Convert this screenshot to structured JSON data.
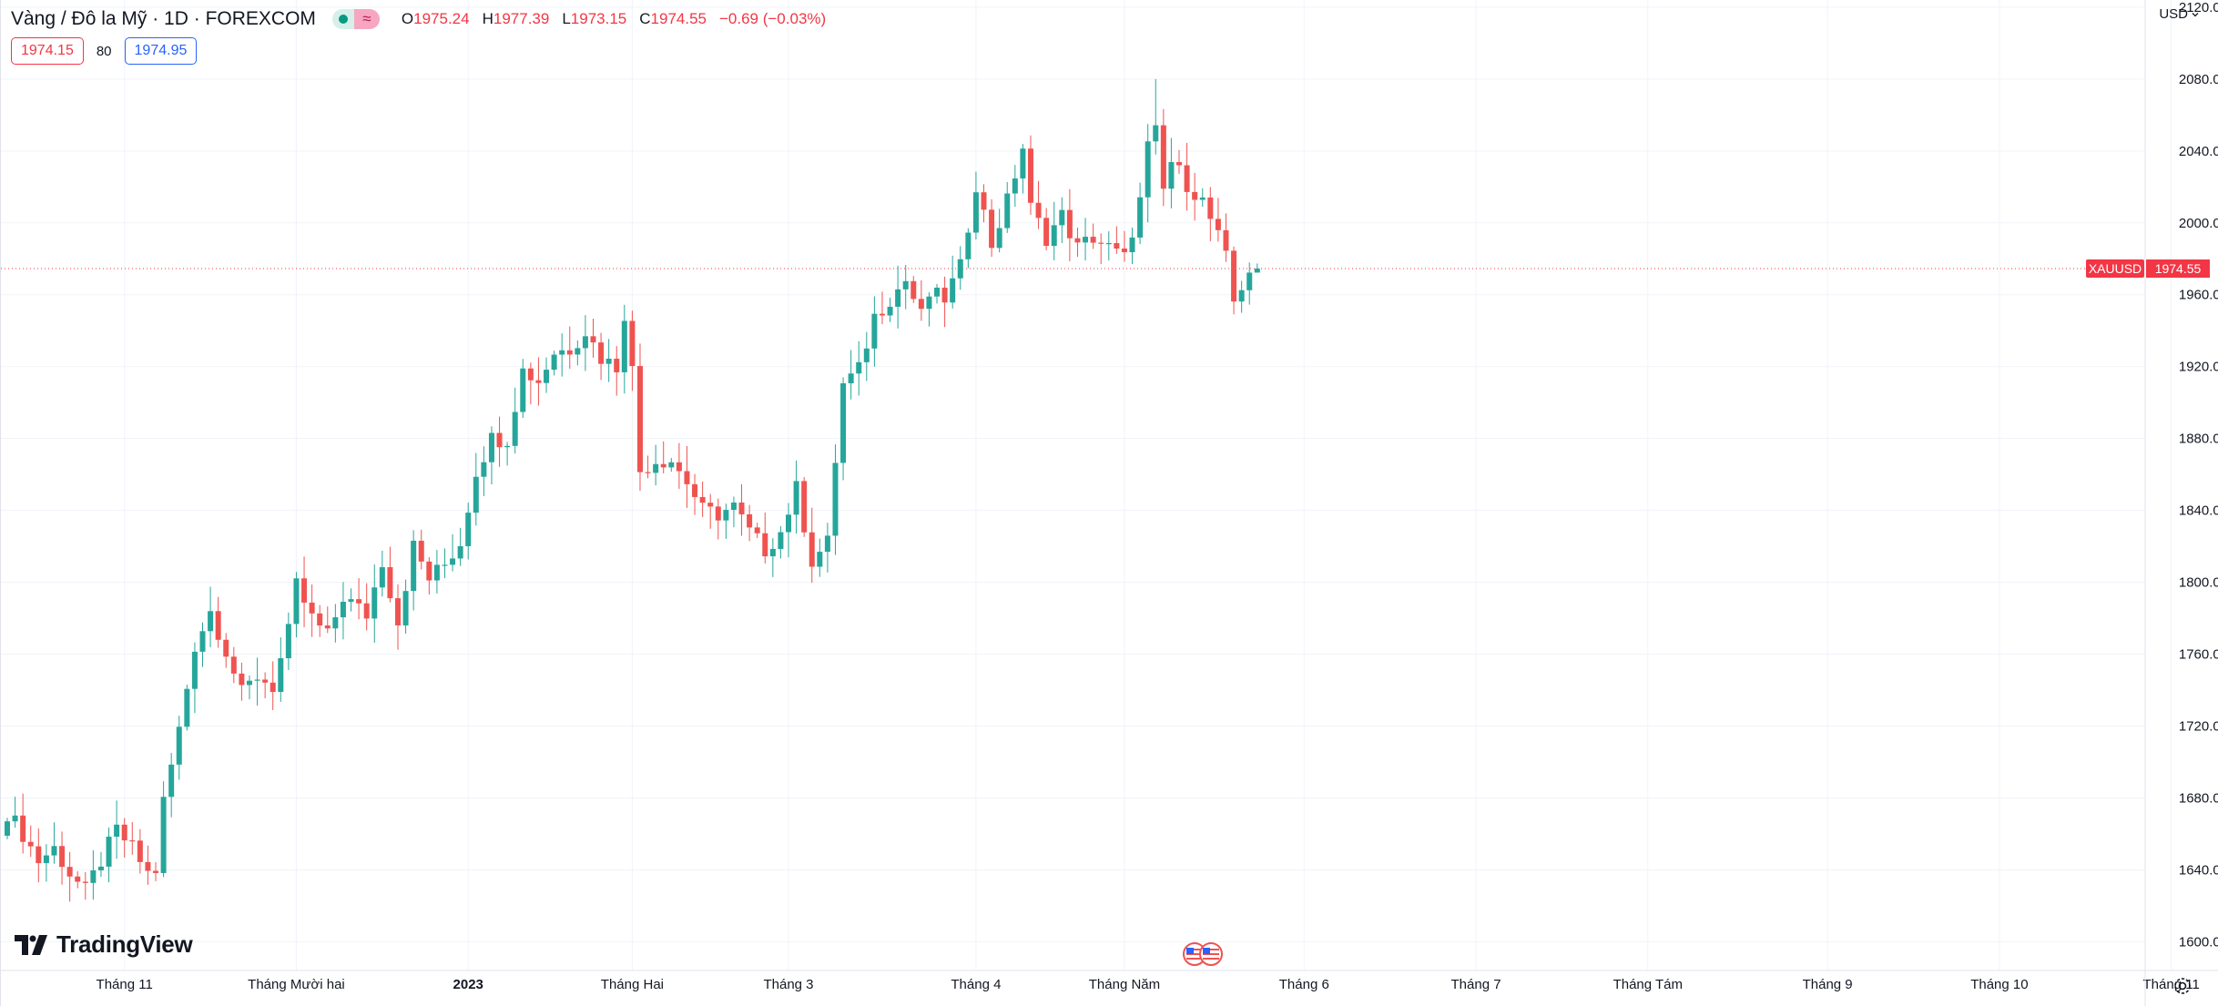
{
  "header": {
    "symbol_title": "Vàng / Đô la Mỹ · 1D · FOREXCOM",
    "status_delay_icon": "≈",
    "ohlc": [
      {
        "key": "O",
        "value": "1975.24"
      },
      {
        "key": "H",
        "value": "1977.39"
      },
      {
        "key": "L",
        "value": "1973.15"
      },
      {
        "key": "C",
        "value": "1974.55"
      }
    ],
    "change": "−0.69 (−0.03%)",
    "sell_price": "1974.15",
    "spread": "80",
    "buy_price": "1974.95"
  },
  "currency_selector": "USD",
  "logo_text": "TradingView",
  "colors": {
    "up": "#26a69a",
    "down": "#ef5350",
    "grid": "#f0f3fa",
    "price_line": "#f23645"
  },
  "icons": {
    "settings": "gear-icon",
    "events": "us-flag-icon",
    "dropdown": "chevron-down-icon"
  },
  "chart_data": {
    "type": "candlestick",
    "interval": "1D",
    "symbol_label": "XAUUSD",
    "last_price": "1974.55",
    "y_axis": {
      "ylim": [
        1584,
        2124
      ],
      "ticks": [
        "1600.00",
        "1640.00",
        "1680.00",
        "1720.00",
        "1760.00",
        "1800.00",
        "1840.00",
        "1880.00",
        "1920.00",
        "1960.00",
        "2000.00",
        "2040.00",
        "2080.00",
        "2120.00"
      ]
    },
    "x_axis": {
      "labels": [
        {
          "text": "Tháng 11",
          "bar": 15,
          "bold": false
        },
        {
          "text": "Tháng Mười hai",
          "bar": 37,
          "bold": false
        },
        {
          "text": "2023",
          "bar": 59,
          "bold": true
        },
        {
          "text": "Tháng Hai",
          "bar": 80,
          "bold": false
        },
        {
          "text": "Tháng 3",
          "bar": 100,
          "bold": false
        },
        {
          "text": "Tháng 4",
          "bar": 124,
          "bold": false
        },
        {
          "text": "Tháng Năm",
          "bar": 143,
          "bold": false
        },
        {
          "text": "Tháng 6",
          "bar": 166,
          "bold": false
        },
        {
          "text": "Tháng 7",
          "bar": 188,
          "bold": false
        },
        {
          "text": "Tháng Tám",
          "bar": 210,
          "bold": false
        },
        {
          "text": "Tháng 9",
          "bar": 233,
          "bold": false
        },
        {
          "text": "Tháng 10",
          "bar": 255,
          "bold": false
        },
        {
          "text": "Tháng 11",
          "bar": 277,
          "bold": false
        }
      ]
    },
    "close_path": [
      [
        0,
        1672
      ],
      [
        2,
        1660
      ],
      [
        4,
        1645
      ],
      [
        6,
        1652
      ],
      [
        8,
        1638
      ],
      [
        10,
        1628
      ],
      [
        12,
        1645
      ],
      [
        14,
        1662
      ],
      [
        16,
        1652
      ],
      [
        18,
        1638
      ],
      [
        19,
        1640
      ],
      [
        20,
        1678
      ],
      [
        22,
        1718
      ],
      [
        24,
        1765
      ],
      [
        26,
        1784
      ],
      [
        28,
        1762
      ],
      [
        30,
        1738
      ],
      [
        32,
        1748
      ],
      [
        34,
        1742
      ],
      [
        36,
        1772
      ],
      [
        37,
        1798
      ],
      [
        39,
        1780
      ],
      [
        41,
        1770
      ],
      [
        43,
        1792
      ],
      [
        46,
        1782
      ],
      [
        48,
        1812
      ],
      [
        50,
        1778
      ],
      [
        52,
        1820
      ],
      [
        54,
        1802
      ],
      [
        56,
        1810
      ],
      [
        58,
        1822
      ],
      [
        60,
        1862
      ],
      [
        62,
        1880
      ],
      [
        64,
        1880
      ],
      [
        66,
        1918
      ],
      [
        68,
        1912
      ],
      [
        70,
        1928
      ],
      [
        72,
        1930
      ],
      [
        74,
        1940
      ],
      [
        76,
        1925
      ],
      [
        78,
        1920
      ],
      [
        79,
        1950
      ],
      [
        80,
        1918
      ],
      [
        81,
        1862
      ],
      [
        83,
        1868
      ],
      [
        85,
        1868
      ],
      [
        87,
        1856
      ],
      [
        89,
        1840
      ],
      [
        91,
        1838
      ],
      [
        93,
        1842
      ],
      [
        95,
        1828
      ],
      [
        97,
        1818
      ],
      [
        99,
        1828
      ],
      [
        101,
        1852
      ],
      [
        103,
        1812
      ],
      [
        105,
        1822
      ],
      [
        106,
        1868
      ],
      [
        107,
        1910
      ],
      [
        109,
        1918
      ],
      [
        111,
        1948
      ],
      [
        113,
        1958
      ],
      [
        115,
        1968
      ],
      [
        117,
        1948
      ],
      [
        118,
        1960
      ],
      [
        120,
        1958
      ],
      [
        122,
        1975
      ],
      [
        124,
        2022
      ],
      [
        126,
        1988
      ],
      [
        128,
        2012
      ],
      [
        130,
        2042
      ],
      [
        131,
        2008
      ],
      [
        133,
        1992
      ],
      [
        135,
        2004
      ],
      [
        137,
        1986
      ],
      [
        139,
        1992
      ],
      [
        141,
        1986
      ],
      [
        143,
        1980
      ],
      [
        145,
        2012
      ],
      [
        146,
        2042
      ],
      [
        147,
        2050
      ],
      [
        148,
        2018
      ],
      [
        149,
        2034
      ],
      [
        151,
        2022
      ],
      [
        153,
        2012
      ],
      [
        155,
        1992
      ],
      [
        156,
        1980
      ],
      [
        157,
        1956
      ],
      [
        159,
        1974
      ],
      [
        160,
        1974.55
      ]
    ]
  }
}
